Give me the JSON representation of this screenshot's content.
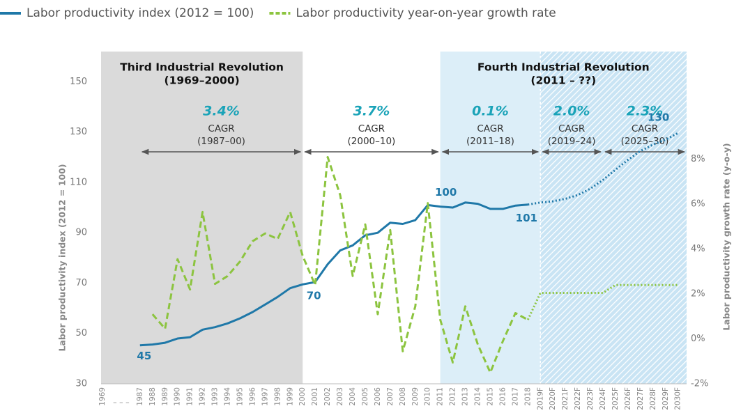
{
  "chart_data": {
    "type": "line",
    "categories": [
      "1969",
      null,
      null,
      "1987",
      "1988",
      "1989",
      "1990",
      "1991",
      "1992",
      "1993",
      "1994",
      "1995",
      "1996",
      "1997",
      "1998",
      "1999",
      "2000",
      "2001",
      "2002",
      "2003",
      "2004",
      "2005",
      "2006",
      "2007",
      "2008",
      "2009",
      "2010",
      "2011",
      "2012",
      "2013",
      "2014",
      "2015",
      "2016",
      "2017",
      "2018",
      "2019F",
      "2020F",
      "2021F",
      "2022F",
      "2023F",
      "2024F",
      "2025F",
      "2026F",
      "2027F",
      "2028F",
      "2029F",
      "2030F"
    ],
    "x_gap_label": "– – –",
    "ylabel": "Labor productivity index (2012 = 100)",
    "y2label": "Labor productivity growth rate (y-o-y)",
    "ylim": [
      30,
      162
    ],
    "yticks": [
      30,
      50,
      70,
      90,
      110,
      130,
      150
    ],
    "y2lim": [
      -2,
      12.8
    ],
    "y2ticks": [
      {
        "value": -2,
        "label": "-2%"
      },
      {
        "value": 0,
        "label": "0%"
      },
      {
        "value": 2,
        "label": "2%"
      },
      {
        "value": 4,
        "label": "4%"
      },
      {
        "value": 6,
        "label": "6%"
      },
      {
        "value": 8,
        "label": "8%"
      }
    ],
    "series": [
      {
        "name": "Labor productivity index (2012 = 100)",
        "color": "#1f78a8",
        "axis": "y",
        "style": "solid",
        "values": [
          null,
          null,
          null,
          45.3,
          45.6,
          46.3,
          48,
          48.5,
          51.5,
          52.5,
          54,
          56,
          58.5,
          61.5,
          64.5,
          68,
          69.5,
          70.4,
          77.5,
          83,
          85,
          89,
          90,
          94,
          93.5,
          95,
          101,
          100.4,
          100,
          102,
          101.5,
          99.5,
          99.5,
          100.8,
          101.2,
          null,
          null,
          null,
          null,
          null,
          null,
          null,
          null,
          null,
          null,
          null,
          null
        ],
        "value_labels": [
          null,
          null,
          null,
          "45",
          null,
          null,
          null,
          null,
          null,
          null,
          null,
          null,
          null,
          null,
          null,
          null,
          null,
          "70",
          null,
          null,
          null,
          null,
          null,
          null,
          null,
          null,
          null,
          "100",
          null,
          null,
          null,
          null,
          null,
          null,
          "101",
          null,
          null,
          null,
          null,
          null,
          null,
          null,
          null,
          null,
          null,
          null,
          null
        ],
        "forecast": [
          null,
          null,
          null,
          null,
          null,
          null,
          null,
          null,
          null,
          null,
          null,
          null,
          null,
          null,
          null,
          null,
          null,
          null,
          null,
          null,
          null,
          null,
          null,
          null,
          null,
          null,
          null,
          null,
          null,
          null,
          null,
          null,
          null,
          null,
          101.2,
          102,
          102.5,
          103.5,
          105,
          107.5,
          111,
          115,
          119,
          122.5,
          125,
          127,
          129.6
        ],
        "forecast_labels": [
          null,
          null,
          null,
          null,
          null,
          null,
          null,
          null,
          null,
          null,
          null,
          null,
          null,
          null,
          null,
          null,
          null,
          null,
          null,
          null,
          null,
          null,
          null,
          null,
          null,
          null,
          null,
          null,
          null,
          null,
          null,
          null,
          null,
          null,
          null,
          null,
          null,
          null,
          null,
          null,
          null,
          null,
          null,
          null,
          null,
          null,
          "130"
        ]
      },
      {
        "name": "Labor productivity year-on-year growth rate",
        "color": "#8cc43f",
        "axis": "y2",
        "style": "dashed",
        "values": [
          null,
          null,
          null,
          null,
          1.1,
          0.45,
          3.55,
          2.2,
          5.65,
          2.45,
          2.8,
          3.45,
          4.35,
          4.7,
          4.45,
          5.65,
          3.7,
          2.4,
          8.1,
          6.4,
          2.8,
          5.1,
          1.1,
          4.85,
          -0.55,
          1.45,
          6.05,
          0.85,
          -1.05,
          1.45,
          -0.25,
          -1.5,
          -0.1,
          1.15,
          0.85,
          null,
          null,
          null,
          null,
          null,
          null,
          null,
          null,
          null,
          null,
          null,
          null
        ],
        "forecast": [
          null,
          null,
          null,
          null,
          null,
          null,
          null,
          null,
          null,
          null,
          null,
          null,
          null,
          null,
          null,
          null,
          null,
          null,
          null,
          null,
          null,
          null,
          null,
          null,
          null,
          null,
          null,
          null,
          null,
          null,
          null,
          null,
          null,
          null,
          0.85,
          2.05,
          2.05,
          2.05,
          2.05,
          2.05,
          2.05,
          2.4,
          2.4,
          2.4,
          2.4,
          2.4,
          2.4
        ]
      }
    ],
    "regions": [
      {
        "title": [
          "Third Industrial Revolution",
          "(1969–2000)"
        ],
        "from": "1969",
        "to": "2000",
        "color": "#dadada"
      },
      {
        "title": [
          "Fourth Industrial Revolution",
          "(2011 – ??)"
        ],
        "from": "2011",
        "to": "2030F",
        "color": "#dceef8"
      }
    ],
    "forecast_start": "2019F",
    "cagr": {
      "label": "CAGR",
      "values": [
        3.4,
        3.7,
        0.1,
        2.0,
        2.3
      ],
      "value_labels": [
        "3.4%",
        "3.7%",
        "0.1%",
        "2.0%",
        "2.3%"
      ],
      "periods": [
        "(1987–00)",
        "(2000–10)",
        "(2011–18)",
        "(2019–24)",
        "(2025–30)"
      ],
      "from": [
        "1987",
        "2000",
        "2011",
        "2019F",
        "2024F"
      ],
      "to": [
        "2000",
        "2011",
        "2019F",
        "2024F",
        "2030F"
      ],
      "color": "#1aa3b8"
    }
  }
}
